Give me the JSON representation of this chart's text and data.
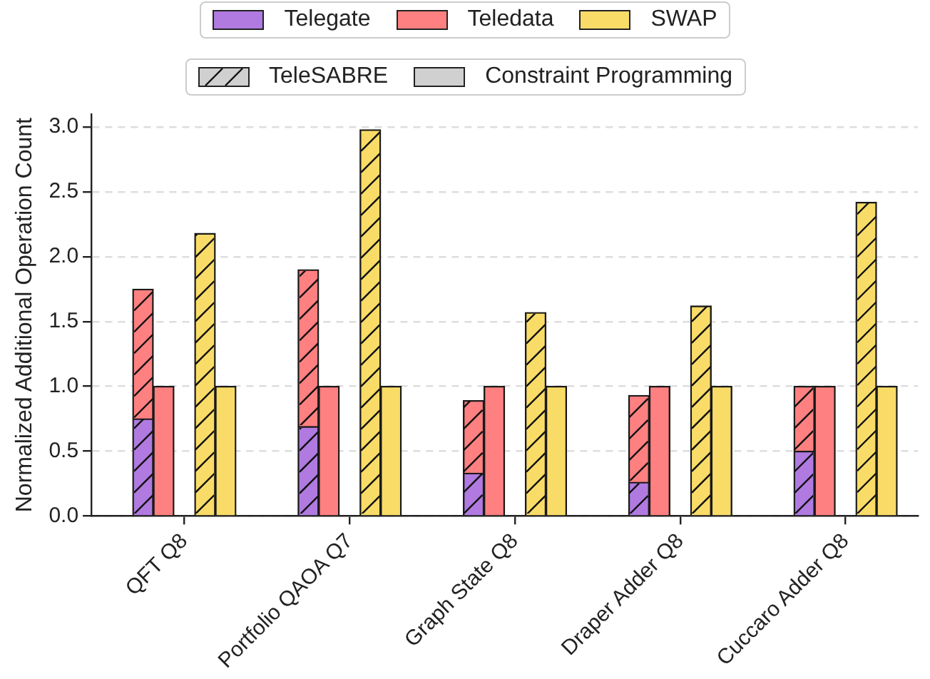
{
  "chart_data": {
    "type": "bar",
    "ylabel": "Normalized Additional Operation Count",
    "categories": [
      null,
      null,
      null,
      null,
      "QFT Q8",
      null,
      null,
      null,
      null,
      null,
      null,
      null,
      "Portfolio QAOA Q7",
      null,
      null,
      null,
      null,
      null,
      null,
      null,
      "Graph State Q8",
      null,
      null,
      null,
      null,
      null,
      null,
      null,
      "Draper Adder Q8",
      null,
      null,
      null,
      null,
      null,
      null,
      null,
      "Cuccaro Adder Q8",
      null,
      null,
      null
    ],
    "ylim": [
      0,
      3.1
    ],
    "yticks": [
      {
        "value": 0,
        "label": "0.0"
      },
      0.5,
      {
        "value": 1,
        "label": "1.0"
      },
      1.5,
      {
        "value": 2,
        "label": "2.0"
      },
      2.5,
      {
        "value": 3,
        "label": "3.0"
      }
    ],
    "grid": "y",
    "legend": "top",
    "stacked": true,
    "annotations": [
      "TeleSABRE",
      "Constraint Programming"
    ],
    "series": [
      {
        "name": "Telegate",
        "color": "#b07ae0",
        "values": [
          null,
          null,
          0.75,
          null,
          null,
          null,
          null,
          null,
          null,
          null,
          0.69,
          null,
          null,
          null,
          null,
          null,
          null,
          null,
          0.33,
          null,
          null,
          null,
          null,
          null,
          null,
          null,
          0.26,
          null,
          null,
          null,
          null,
          null,
          null,
          null,
          0.5,
          null,
          null,
          null,
          null,
          null
        ]
      },
      {
        "name": "Teledata",
        "color": "#ff8080",
        "values": [
          null,
          null,
          1.0,
          null,
          null,
          null,
          null,
          null,
          null,
          null,
          1.21,
          null,
          null,
          null,
          null,
          null,
          null,
          null,
          0.56,
          null,
          null,
          null,
          null,
          null,
          null,
          null,
          0.67,
          null,
          null,
          null,
          null,
          null,
          null,
          null,
          0.5,
          null,
          null,
          null,
          null,
          null
        ]
      },
      {
        "color": "#ff8080",
        "values": [
          null,
          null,
          null,
          1,
          null,
          null,
          null,
          null,
          null,
          null,
          null,
          1,
          null,
          null,
          null,
          null,
          null,
          null,
          null,
          1,
          null,
          null,
          null,
          null,
          null,
          null,
          null,
          1,
          null,
          null,
          null,
          null,
          null,
          null,
          null,
          1,
          null,
          null,
          null,
          null
        ]
      },
      {
        "name": "SWAP",
        "color": "#f9dc68",
        "values": [
          null,
          null,
          null,
          null,
          null,
          2.18,
          null,
          null,
          null,
          null,
          null,
          null,
          null,
          2.98,
          null,
          null,
          null,
          null,
          null,
          null,
          null,
          1.57,
          null,
          null,
          null,
          null,
          null,
          null,
          null,
          1.62,
          null,
          null,
          null,
          null,
          null,
          null,
          null,
          2.42,
          null,
          null
        ]
      },
      {
        "color": "#f9dc68",
        "values": [
          null,
          null,
          null,
          null,
          null,
          null,
          1,
          null,
          null,
          null,
          null,
          null,
          null,
          null,
          1,
          null,
          null,
          null,
          null,
          null,
          null,
          null,
          1,
          null,
          null,
          null,
          null,
          null,
          null,
          null,
          1,
          null,
          null,
          null,
          null,
          null,
          null,
          null,
          1,
          null
        ]
      }
    ]
  }
}
